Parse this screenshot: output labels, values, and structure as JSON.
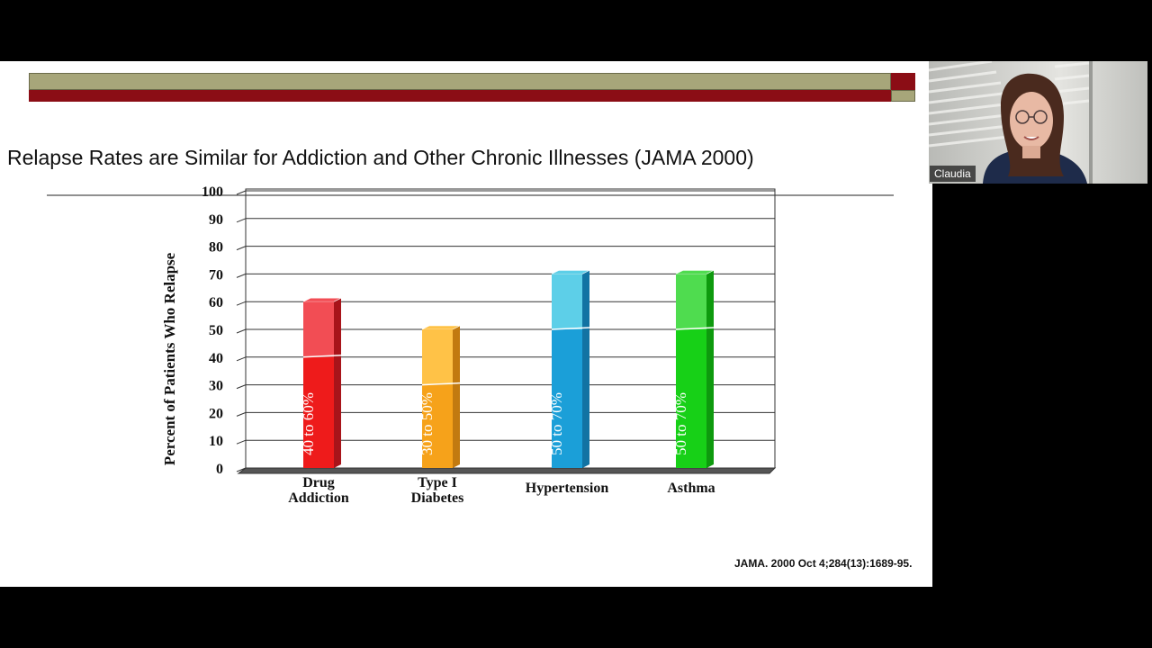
{
  "slide": {
    "title": "Relapse Rates are Similar for Addiction and Other Chronic Illnesses (JAMA 2000)",
    "citation": "JAMA. 2000 Oct 4;284(13):1689-95."
  },
  "participant": {
    "name": "Claudia"
  },
  "chart_data": {
    "type": "bar",
    "title": "",
    "ylabel": "Percent of Patients Who Relapse",
    "xlabel": "",
    "ylim": [
      0,
      100
    ],
    "yticks": [
      0,
      10,
      20,
      30,
      40,
      50,
      60,
      70,
      80,
      90,
      100
    ],
    "grid": true,
    "categories": [
      {
        "label": [
          "Drug",
          "Addiction"
        ],
        "low": 40,
        "high": 60,
        "range_label": "40 to 60%",
        "colors": {
          "top": "#f24d54",
          "bottom": "#ee1b1b",
          "side": "#a8141a"
        }
      },
      {
        "label": [
          "Type I",
          "Diabetes"
        ],
        "low": 30,
        "high": 50,
        "range_label": "30 to 50%",
        "colors": {
          "top": "#ffc247",
          "bottom": "#f6a21a",
          "side": "#c27a10"
        }
      },
      {
        "label": [
          "Hypertension"
        ],
        "low": 50,
        "high": 70,
        "range_label": "50 to 70%",
        "colors": {
          "top": "#5dcfe8",
          "bottom": "#1b9fd8",
          "side": "#1273a3"
        }
      },
      {
        "label": [
          "Asthma"
        ],
        "low": 50,
        "high": 70,
        "range_label": "50 to 70%",
        "colors": {
          "top": "#4fdc4f",
          "bottom": "#17d017",
          "side": "#0e9a0e"
        }
      }
    ]
  }
}
